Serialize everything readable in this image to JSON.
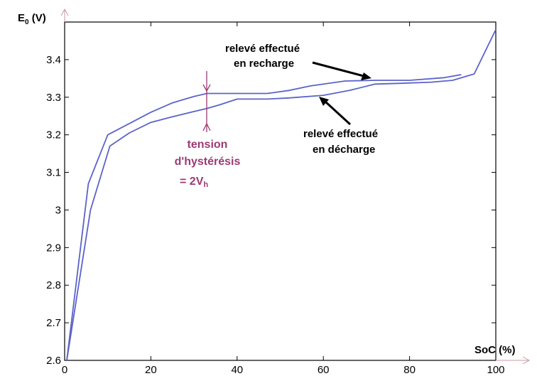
{
  "chart_data": {
    "type": "line",
    "title": "",
    "xlabel": "SoC (%)",
    "ylabel": "E0 (V)",
    "ylabel_main": "E",
    "ylabel_sub": "0",
    "ylabel_unit": " (V)",
    "xlim": [
      0,
      100
    ],
    "ylim": [
      2.6,
      3.5
    ],
    "x_ticks": [
      0,
      20,
      40,
      60,
      80,
      100
    ],
    "y_ticks": [
      2.6,
      2.7,
      2.8,
      2.9,
      3,
      3.1,
      3.2,
      3.3,
      3.4
    ],
    "y_tick_labels": [
      "2.6",
      "2.7",
      "2.8",
      "2.9",
      "3",
      "3.1",
      "3.2",
      "3.3",
      "3.4"
    ],
    "grid": false,
    "line_color": "#5b63c9",
    "annotation_color": "#9b3a73",
    "series": [
      {
        "x": [
          0.5,
          5.5,
          10,
          15,
          20,
          25,
          30,
          33,
          40,
          47,
          52,
          57,
          65,
          72,
          80,
          88,
          92
        ],
        "y": [
          2.6,
          3.07,
          3.2,
          3.23,
          3.26,
          3.285,
          3.302,
          3.31,
          3.31,
          3.31,
          3.318,
          3.33,
          3.343,
          3.345,
          3.345,
          3.352,
          3.36
        ]
      },
      {
        "x": [
          0.5,
          6,
          10.5,
          15,
          20,
          25,
          30,
          33,
          36,
          40,
          47,
          52,
          60,
          66,
          72,
          78,
          85,
          90,
          95,
          100
        ],
        "y": [
          2.6,
          3.0,
          3.17,
          3.205,
          3.233,
          3.248,
          3.262,
          3.27,
          3.28,
          3.295,
          3.295,
          3.298,
          3.305,
          3.318,
          3.335,
          3.337,
          3.34,
          3.345,
          3.362,
          3.48
        ]
      }
    ],
    "annotations": {
      "charge_line1": "relevé effectué",
      "charge_line2": "en recharge",
      "discharge_line1": "relevé effectué",
      "discharge_line2": "en décharge",
      "hyst_line1": "tension",
      "hyst_line2": "d'hystérésis",
      "hyst_line3_main": "= 2V",
      "hyst_line3_sub": "h"
    }
  }
}
